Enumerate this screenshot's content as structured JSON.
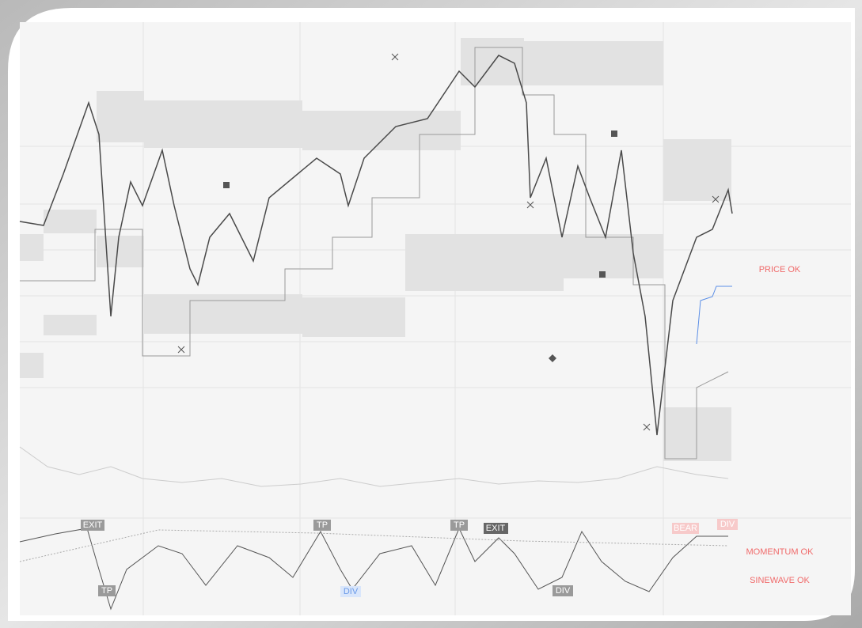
{
  "status": {
    "price": "PRICE OK",
    "momentum": "MOMENTUM OK",
    "sinewave": "SINEWAVE OK"
  },
  "tags": [
    {
      "label": "EXIT"
    },
    {
      "label": "TP"
    },
    {
      "label": "TP"
    },
    {
      "label": "EXIT"
    },
    {
      "label": "BEAR"
    },
    {
      "label": "DIV"
    },
    {
      "label": "TP"
    },
    {
      "label": "DIV"
    },
    {
      "label": "DIV"
    }
  ]
}
